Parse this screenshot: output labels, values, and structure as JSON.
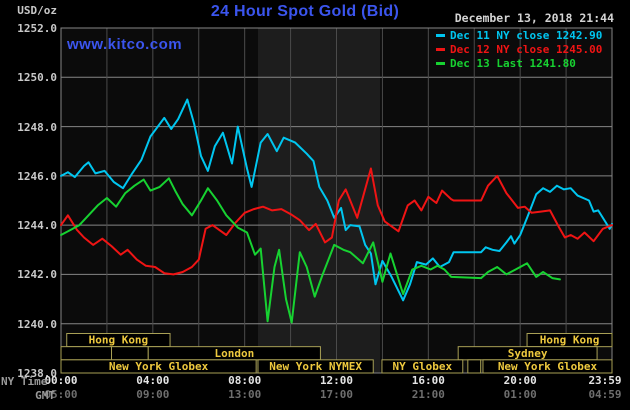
{
  "header": {
    "unit_label": "USD/oz",
    "title": "24 Hour Spot Gold (Bid)",
    "datetime": "December 13, 2018 21:44",
    "watermark": "www.kitco.com"
  },
  "legend": [
    {
      "label": "Dec 11 NY close 1242.90",
      "color": "#00c6f0"
    },
    {
      "label": "Dec 12 NY close 1245.00",
      "color": "#f01414"
    },
    {
      "label": "Dec 13 Last 1241.80",
      "color": "#17d231"
    }
  ],
  "axes": {
    "ny_time_label": "NY Time",
    "gmt_label": "GMT",
    "ny_ticks": [
      "00:00",
      "04:00",
      "08:00",
      "12:00",
      "16:00",
      "20:00",
      "23:59"
    ],
    "gmt_ticks": [
      "05:00",
      "09:00",
      "13:00",
      "17:00",
      "21:00",
      "01:00",
      "04:59"
    ],
    "y_ticks": [
      "1252.0",
      "1250.0",
      "1248.0",
      "1246.0",
      "1244.0",
      "1242.0",
      "1240.0",
      "1238.0"
    ]
  },
  "colors": {
    "page_bg": "#000000",
    "plot_bg": "#0b0b0b",
    "nymex_band": "#1d1d1d",
    "grid_h": "#868686",
    "grid_v": "#4b4b4b",
    "plot_border": "#868686",
    "title_blue": "#3b55ee",
    "axis_text": "#c9c9c9",
    "datetime_text": "#d4d4d4",
    "ny_tick_text": "#e4e4e4",
    "gmt_tick_text": "#6e6e6e",
    "session_border": "#a8a055",
    "session_text": "#eec93e"
  },
  "chart_data": {
    "type": "line",
    "title": "24 Hour Spot Gold (Bid)",
    "ylabel": "USD/oz",
    "xlabel": "NY Time (hours 00:00-23:59)",
    "xlim": [
      0,
      24
    ],
    "ylim": [
      1238,
      1252
    ],
    "y_tick_step": 2,
    "x_gridline_step_hours": 2,
    "grid": true,
    "legend_position": "top-right",
    "nymex_band_hours": [
      8.58,
      13.9
    ],
    "series": [
      {
        "name": "Dec 11 NY close 1242.90",
        "color": "#00c6f0",
        "points": [
          [
            0,
            1246.0
          ],
          [
            0.3,
            1246.15
          ],
          [
            0.6,
            1245.95
          ],
          [
            1.0,
            1246.4
          ],
          [
            1.2,
            1246.55
          ],
          [
            1.5,
            1246.1
          ],
          [
            1.9,
            1246.2
          ],
          [
            2.3,
            1245.75
          ],
          [
            2.7,
            1245.5
          ],
          [
            3.1,
            1246.1
          ],
          [
            3.5,
            1246.65
          ],
          [
            3.9,
            1247.6
          ],
          [
            4.5,
            1248.35
          ],
          [
            4.8,
            1247.9
          ],
          [
            5.1,
            1248.3
          ],
          [
            5.5,
            1249.1
          ],
          [
            5.8,
            1248.1
          ],
          [
            6.1,
            1246.8
          ],
          [
            6.4,
            1246.2
          ],
          [
            6.7,
            1247.2
          ],
          [
            7.05,
            1247.75
          ],
          [
            7.45,
            1246.5
          ],
          [
            7.7,
            1248.0
          ],
          [
            8.1,
            1246.3
          ],
          [
            8.3,
            1245.55
          ],
          [
            8.7,
            1247.35
          ],
          [
            9.0,
            1247.7
          ],
          [
            9.4,
            1247.0
          ],
          [
            9.7,
            1247.55
          ],
          [
            10.2,
            1247.35
          ],
          [
            10.7,
            1246.9
          ],
          [
            11.0,
            1246.6
          ],
          [
            11.25,
            1245.55
          ],
          [
            11.6,
            1245.0
          ],
          [
            11.9,
            1244.3
          ],
          [
            12.2,
            1244.7
          ],
          [
            12.4,
            1243.8
          ],
          [
            12.6,
            1244.0
          ],
          [
            13.0,
            1243.95
          ],
          [
            13.25,
            1243.2
          ],
          [
            13.5,
            1242.85
          ],
          [
            13.7,
            1241.6
          ],
          [
            14.0,
            1242.55
          ],
          [
            14.4,
            1241.9
          ],
          [
            14.9,
            1240.95
          ],
          [
            15.2,
            1241.6
          ],
          [
            15.5,
            1242.5
          ],
          [
            15.9,
            1242.4
          ],
          [
            16.2,
            1242.65
          ],
          [
            16.5,
            1242.3
          ],
          [
            16.9,
            1242.5
          ],
          [
            17.1,
            1242.9
          ],
          [
            18.3,
            1242.9
          ],
          [
            18.5,
            1243.1
          ],
          [
            18.8,
            1243.0
          ],
          [
            19.1,
            1242.95
          ],
          [
            19.4,
            1243.3
          ],
          [
            19.6,
            1243.55
          ],
          [
            19.75,
            1243.25
          ],
          [
            20.0,
            1243.6
          ],
          [
            20.3,
            1244.3
          ],
          [
            20.7,
            1245.25
          ],
          [
            21.0,
            1245.5
          ],
          [
            21.3,
            1245.35
          ],
          [
            21.6,
            1245.6
          ],
          [
            21.9,
            1245.45
          ],
          [
            22.2,
            1245.5
          ],
          [
            22.5,
            1245.2
          ],
          [
            23.0,
            1245.0
          ],
          [
            23.2,
            1244.55
          ],
          [
            23.4,
            1244.6
          ],
          [
            23.7,
            1244.15
          ],
          [
            23.9,
            1243.85
          ],
          [
            24,
            1244.05
          ]
        ]
      },
      {
        "name": "Dec 12 NY close 1245.00",
        "color": "#f01414",
        "points": [
          [
            0,
            1244.0
          ],
          [
            0.3,
            1244.4
          ],
          [
            0.7,
            1243.8
          ],
          [
            1.0,
            1243.5
          ],
          [
            1.4,
            1243.2
          ],
          [
            1.8,
            1243.45
          ],
          [
            2.2,
            1243.15
          ],
          [
            2.6,
            1242.8
          ],
          [
            2.9,
            1243.0
          ],
          [
            3.3,
            1242.6
          ],
          [
            3.7,
            1242.35
          ],
          [
            4.1,
            1242.3
          ],
          [
            4.5,
            1242.05
          ],
          [
            4.9,
            1242.0
          ],
          [
            5.3,
            1242.1
          ],
          [
            5.7,
            1242.3
          ],
          [
            6.0,
            1242.6
          ],
          [
            6.3,
            1243.85
          ],
          [
            6.6,
            1244.0
          ],
          [
            6.9,
            1243.8
          ],
          [
            7.2,
            1243.6
          ],
          [
            7.6,
            1244.1
          ],
          [
            8.0,
            1244.5
          ],
          [
            8.4,
            1244.65
          ],
          [
            8.8,
            1244.75
          ],
          [
            9.2,
            1244.6
          ],
          [
            9.6,
            1244.65
          ],
          [
            10.0,
            1244.45
          ],
          [
            10.4,
            1244.2
          ],
          [
            10.8,
            1243.8
          ],
          [
            11.1,
            1244.05
          ],
          [
            11.5,
            1243.3
          ],
          [
            11.8,
            1243.5
          ],
          [
            12.1,
            1245.0
          ],
          [
            12.4,
            1245.45
          ],
          [
            12.9,
            1244.3
          ],
          [
            13.5,
            1246.3
          ],
          [
            13.8,
            1244.8
          ],
          [
            14.1,
            1244.15
          ],
          [
            14.7,
            1243.75
          ],
          [
            15.1,
            1244.8
          ],
          [
            15.4,
            1245.0
          ],
          [
            15.7,
            1244.6
          ],
          [
            16.0,
            1245.15
          ],
          [
            16.35,
            1244.9
          ],
          [
            16.6,
            1245.4
          ],
          [
            17.0,
            1245.05
          ],
          [
            17.1,
            1245.0
          ],
          [
            18.3,
            1245.0
          ],
          [
            18.6,
            1245.6
          ],
          [
            19.0,
            1246.0
          ],
          [
            19.4,
            1245.3
          ],
          [
            19.9,
            1244.7
          ],
          [
            20.2,
            1244.75
          ],
          [
            20.5,
            1244.5
          ],
          [
            20.9,
            1244.55
          ],
          [
            21.3,
            1244.6
          ],
          [
            21.7,
            1243.9
          ],
          [
            21.95,
            1243.5
          ],
          [
            22.2,
            1243.6
          ],
          [
            22.5,
            1243.45
          ],
          [
            22.8,
            1243.7
          ],
          [
            23.2,
            1243.35
          ],
          [
            23.6,
            1243.85
          ],
          [
            24,
            1244.0
          ]
        ]
      },
      {
        "name": "Dec 13 Last 1241.80",
        "color": "#17d231",
        "points": [
          [
            0,
            1243.6
          ],
          [
            0.4,
            1243.8
          ],
          [
            0.8,
            1244.0
          ],
          [
            1.2,
            1244.4
          ],
          [
            1.6,
            1244.8
          ],
          [
            2.0,
            1245.1
          ],
          [
            2.4,
            1244.75
          ],
          [
            2.8,
            1245.3
          ],
          [
            3.2,
            1245.6
          ],
          [
            3.6,
            1245.85
          ],
          [
            3.9,
            1245.4
          ],
          [
            4.3,
            1245.55
          ],
          [
            4.7,
            1245.9
          ],
          [
            5.0,
            1245.35
          ],
          [
            5.3,
            1244.85
          ],
          [
            5.7,
            1244.4
          ],
          [
            6.1,
            1245.0
          ],
          [
            6.4,
            1245.5
          ],
          [
            6.8,
            1245.0
          ],
          [
            7.2,
            1244.4
          ],
          [
            7.7,
            1243.9
          ],
          [
            8.1,
            1243.7
          ],
          [
            8.45,
            1242.8
          ],
          [
            8.7,
            1243.05
          ],
          [
            9.0,
            1240.1
          ],
          [
            9.3,
            1242.3
          ],
          [
            9.5,
            1243.0
          ],
          [
            9.8,
            1241.0
          ],
          [
            10.05,
            1240.05
          ],
          [
            10.4,
            1242.9
          ],
          [
            10.7,
            1242.3
          ],
          [
            11.05,
            1241.1
          ],
          [
            11.4,
            1242.0
          ],
          [
            11.9,
            1243.2
          ],
          [
            12.3,
            1243.0
          ],
          [
            12.6,
            1242.9
          ],
          [
            13.15,
            1242.45
          ],
          [
            13.6,
            1243.3
          ],
          [
            14.0,
            1241.7
          ],
          [
            14.35,
            1242.85
          ],
          [
            14.9,
            1241.2
          ],
          [
            15.3,
            1242.2
          ],
          [
            15.7,
            1242.35
          ],
          [
            16.1,
            1242.2
          ],
          [
            16.4,
            1242.35
          ],
          [
            16.7,
            1242.2
          ],
          [
            17.0,
            1241.9
          ],
          [
            18.3,
            1241.85
          ],
          [
            18.6,
            1242.1
          ],
          [
            19.0,
            1242.3
          ],
          [
            19.4,
            1242.0
          ],
          [
            19.8,
            1242.2
          ],
          [
            20.3,
            1242.45
          ],
          [
            20.7,
            1241.9
          ],
          [
            21.0,
            1242.1
          ],
          [
            21.4,
            1241.85
          ],
          [
            21.73,
            1241.8
          ]
        ]
      }
    ],
    "sessions": {
      "rows": [
        [
          {
            "label": "Hong Kong",
            "from": 0.25,
            "to": 4.75
          },
          {
            "label": "Hong Kong",
            "from": 20.3,
            "to": 24
          }
        ],
        [
          {
            "label": "",
            "from": 0,
            "to": 2.2
          },
          {
            "label": "",
            "from": 2.2,
            "to": 3.8
          },
          {
            "label": "London",
            "from": 3.8,
            "to": 11.3
          },
          {
            "label": "Sydney",
            "from": 17.3,
            "to": 23.35
          }
        ],
        [
          {
            "label": "New York Globex",
            "from": 0,
            "to": 8.5
          },
          {
            "label": "New York NYMEX",
            "from": 8.58,
            "to": 13.6
          },
          {
            "label": "NY Globex",
            "from": 13.98,
            "to": 17.5
          },
          {
            "label": "",
            "from": 17.72,
            "to": 18.28
          },
          {
            "label": "New York Globex",
            "from": 18.38,
            "to": 24
          }
        ]
      ]
    }
  }
}
